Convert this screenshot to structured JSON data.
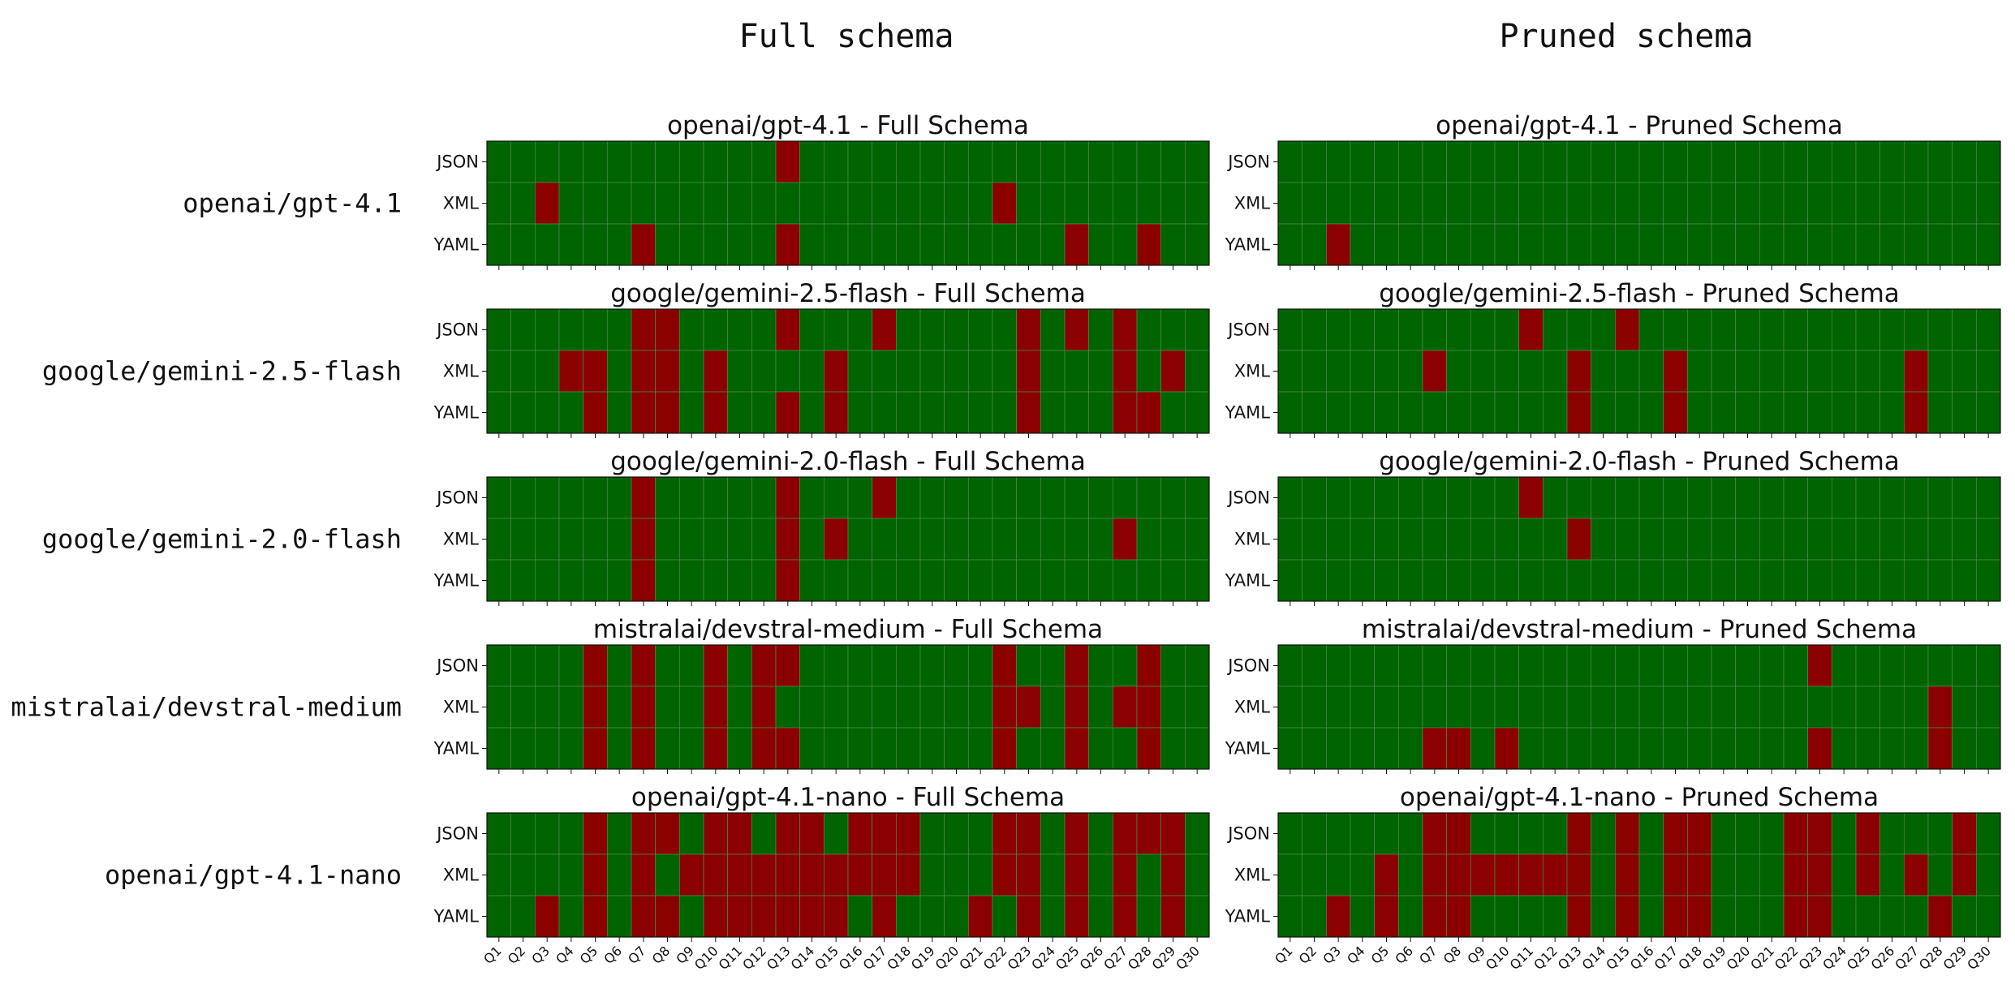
{
  "figure": {
    "column_titles": [
      "Full schema",
      "Pruned schema"
    ]
  },
  "chart_data": {
    "type": "heatmap",
    "formats": [
      "JSON",
      "XML",
      "YAML"
    ],
    "questions": [
      "Q1",
      "Q2",
      "Q3",
      "Q4",
      "Q5",
      "Q6",
      "Q7",
      "Q8",
      "Q9",
      "Q10",
      "Q11",
      "Q12",
      "Q13",
      "Q14",
      "Q15",
      "Q16",
      "Q17",
      "Q18",
      "Q19",
      "Q20",
      "Q21",
      "Q22",
      "Q23",
      "Q24",
      "Q25",
      "Q26",
      "Q27",
      "Q28",
      "Q29",
      "Q30"
    ],
    "legend": "none",
    "colors": {
      "pass": "#006400",
      "fail": "#8b0000",
      "grid": "#4e8a4e"
    },
    "value_meaning": "1 = red cell, 0 = green cell",
    "rows": [
      {
        "model": "openai/gpt-4.1",
        "panels": [
          {
            "title": "openai/gpt-4.1 - Full Schema",
            "fail_questions": {
              "JSON": [
                13
              ],
              "XML": [
                3,
                22
              ],
              "YAML": [
                7,
                13,
                25,
                28
              ]
            }
          },
          {
            "title": "openai/gpt-4.1 - Pruned Schema",
            "fail_questions": {
              "JSON": [],
              "XML": [],
              "YAML": [
                3
              ]
            }
          }
        ]
      },
      {
        "model": "google/gemini-2.5-flash",
        "panels": [
          {
            "title": "google/gemini-2.5-flash - Full Schema",
            "fail_questions": {
              "JSON": [
                7,
                8,
                13,
                17,
                23,
                25,
                27
              ],
              "XML": [
                4,
                5,
                7,
                8,
                10,
                15,
                23,
                27,
                29
              ],
              "YAML": [
                5,
                7,
                8,
                10,
                13,
                15,
                23,
                27,
                28
              ]
            }
          },
          {
            "title": "google/gemini-2.5-flash - Pruned Schema",
            "fail_questions": {
              "JSON": [
                11,
                15
              ],
              "XML": [
                7,
                13,
                17,
                27
              ],
              "YAML": [
                13,
                17,
                27
              ]
            }
          }
        ]
      },
      {
        "model": "google/gemini-2.0-flash",
        "panels": [
          {
            "title": "google/gemini-2.0-flash - Full Schema",
            "fail_questions": {
              "JSON": [
                7,
                13,
                17
              ],
              "XML": [
                7,
                13,
                15,
                27
              ],
              "YAML": [
                7,
                13
              ]
            }
          },
          {
            "title": "google/gemini-2.0-flash - Pruned Schema",
            "fail_questions": {
              "JSON": [
                11
              ],
              "XML": [
                13
              ],
              "YAML": []
            }
          }
        ]
      },
      {
        "model": "mistralai/devstral-medium",
        "panels": [
          {
            "title": "mistralai/devstral-medium - Full Schema",
            "fail_questions": {
              "JSON": [
                5,
                7,
                10,
                12,
                13,
                22,
                25,
                28
              ],
              "XML": [
                5,
                7,
                10,
                12,
                22,
                23,
                25,
                27,
                28
              ],
              "YAML": [
                5,
                7,
                10,
                12,
                13,
                22,
                25,
                28
              ]
            }
          },
          {
            "title": "mistralai/devstral-medium - Pruned Schema",
            "fail_questions": {
              "JSON": [
                23
              ],
              "XML": [
                28
              ],
              "YAML": [
                7,
                8,
                10,
                23,
                28
              ]
            }
          }
        ]
      },
      {
        "model": "openai/gpt-4.1-nano",
        "panels": [
          {
            "title": "openai/gpt-4.1-nano - Full Schema",
            "fail_questions": {
              "JSON": [
                5,
                7,
                8,
                10,
                11,
                13,
                14,
                16,
                17,
                18,
                22,
                23,
                25,
                27,
                28,
                29
              ],
              "XML": [
                5,
                7,
                9,
                10,
                11,
                12,
                13,
                14,
                15,
                16,
                17,
                18,
                22,
                23,
                25,
                27,
                29
              ],
              "YAML": [
                3,
                5,
                7,
                8,
                10,
                11,
                12,
                13,
                14,
                15,
                17,
                21,
                23,
                25,
                27,
                29
              ]
            }
          },
          {
            "title": "openai/gpt-4.1-nano - Pruned Schema",
            "fail_questions": {
              "JSON": [
                7,
                8,
                13,
                15,
                17,
                18,
                22,
                23,
                25,
                29
              ],
              "XML": [
                5,
                7,
                8,
                9,
                10,
                11,
                12,
                13,
                15,
                17,
                18,
                22,
                23,
                25,
                27,
                29
              ],
              "YAML": [
                3,
                5,
                7,
                8,
                13,
                15,
                17,
                18,
                22,
                23,
                28
              ]
            }
          }
        ]
      }
    ]
  }
}
